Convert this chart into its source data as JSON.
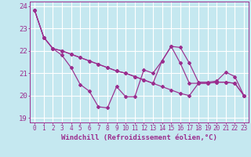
{
  "xlabel": "Windchill (Refroidissement éolien,°C)",
  "x_ticks": [
    0,
    1,
    2,
    3,
    4,
    5,
    6,
    7,
    8,
    9,
    10,
    11,
    12,
    13,
    14,
    15,
    16,
    17,
    18,
    19,
    20,
    21,
    22,
    23
  ],
  "ylim": [
    18.8,
    24.2
  ],
  "xlim": [
    -0.5,
    23.5
  ],
  "yticks": [
    19,
    20,
    21,
    22,
    23,
    24
  ],
  "bg_color": "#c5e8f0",
  "grid_color": "#ffffff",
  "line_color": "#9b2d8e",
  "series1": [
    23.8,
    22.6,
    22.1,
    21.8,
    21.25,
    20.5,
    20.2,
    19.5,
    19.45,
    20.4,
    19.95,
    19.95,
    21.15,
    21.0,
    21.55,
    22.2,
    22.15,
    21.45,
    20.6,
    20.6,
    20.65,
    21.05,
    20.85,
    20.0
  ],
  "series2": [
    23.8,
    22.6,
    22.1,
    22.0,
    21.85,
    21.7,
    21.55,
    21.4,
    21.25,
    21.1,
    21.0,
    20.85,
    20.7,
    20.55,
    20.4,
    20.25,
    20.1,
    20.0,
    20.55,
    20.55,
    20.6,
    20.6,
    20.55,
    20.0
  ],
  "series3": [
    23.8,
    22.6,
    22.1,
    22.0,
    21.85,
    21.7,
    21.55,
    21.4,
    21.25,
    21.1,
    21.0,
    20.85,
    20.7,
    20.55,
    21.55,
    22.2,
    21.45,
    20.55,
    20.55,
    20.55,
    20.6,
    20.6,
    20.55,
    20.0
  ],
  "font_size_xlabel": 6.5,
  "font_size_yticks": 6.5,
  "font_size_xticks": 5.5
}
